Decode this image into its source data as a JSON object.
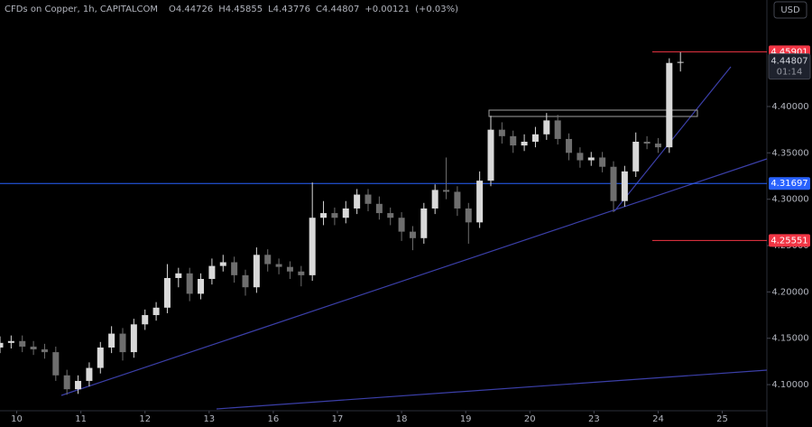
{
  "chart_data": {
    "type": "candlestick",
    "title": "CFDs on Copper, 1h, CAPITALCOM",
    "header_values": [
      {
        "value": 4.44726,
        "label": "O4.44726"
      },
      {
        "value": 4.45855,
        "label": "H4.45855"
      },
      {
        "value": 4.43776,
        "label": "L4.43776"
      },
      {
        "value": 4.44807,
        "label": "C4.44807"
      },
      {
        "value": 0.00121,
        "label": "+0.00121"
      },
      {
        "value": 0.03,
        "label": "(+0.03%)"
      }
    ],
    "currency": "USD",
    "up_color": "#d9d9d9",
    "down_color": "#6e6e6e",
    "x": [
      0,
      4,
      8,
      12,
      16,
      20,
      24,
      28,
      32,
      36,
      40,
      44,
      48,
      52,
      56,
      60,
      64,
      68,
      72,
      76,
      80,
      84,
      88,
      92,
      96,
      100,
      104,
      108,
      112,
      116,
      120,
      124,
      128,
      132,
      136,
      140,
      144,
      148,
      152,
      156,
      160,
      164,
      168,
      172,
      176,
      180,
      184,
      188,
      192,
      196,
      200,
      204,
      208,
      212,
      216,
      220,
      224,
      228,
      232,
      236,
      240,
      244
    ],
    "open": [
      4.14,
      4.145,
      4.147,
      4.141,
      4.138,
      4.135,
      4.11,
      4.095,
      4.104,
      4.118,
      4.14,
      4.155,
      4.135,
      4.165,
      4.175,
      4.183,
      4.215,
      4.22,
      4.198,
      4.214,
      4.228,
      4.232,
      4.218,
      4.205,
      4.24,
      4.23,
      4.227,
      4.222,
      4.218,
      4.28,
      4.285,
      4.28,
      4.29,
      4.305,
      4.295,
      4.285,
      4.28,
      4.265,
      4.258,
      4.29,
      4.31,
      4.308,
      4.29,
      4.275,
      4.32,
      4.375,
      4.368,
      4.358,
      4.362,
      4.37,
      4.385,
      4.365,
      4.35,
      4.342,
      4.345,
      4.335,
      4.298,
      4.33,
      4.362,
      4.36,
      4.356,
      4.44726
    ],
    "high": [
      4.152,
      4.153,
      4.153,
      4.147,
      4.144,
      4.141,
      4.116,
      4.11,
      4.124,
      4.146,
      4.163,
      4.161,
      4.171,
      4.181,
      4.189,
      4.23,
      4.226,
      4.226,
      4.22,
      4.236,
      4.24,
      4.238,
      4.224,
      4.248,
      4.246,
      4.236,
      4.233,
      4.228,
      4.318,
      4.298,
      4.291,
      4.298,
      4.311,
      4.311,
      4.303,
      4.291,
      4.286,
      4.271,
      4.296,
      4.316,
      4.345,
      4.314,
      4.296,
      4.33,
      4.39,
      4.383,
      4.374,
      4.37,
      4.378,
      4.393,
      4.391,
      4.371,
      4.356,
      4.351,
      4.351,
      4.341,
      4.336,
      4.372,
      4.368,
      4.366,
      4.452,
      4.45855
    ],
    "low": [
      4.134,
      4.139,
      4.135,
      4.132,
      4.128,
      4.104,
      4.089,
      4.09,
      4.098,
      4.112,
      4.134,
      4.126,
      4.129,
      4.159,
      4.169,
      4.177,
      4.205,
      4.19,
      4.192,
      4.208,
      4.222,
      4.21,
      4.196,
      4.199,
      4.222,
      4.219,
      4.214,
      4.206,
      4.212,
      4.272,
      4.272,
      4.274,
      4.284,
      4.287,
      4.278,
      4.272,
      4.255,
      4.245,
      4.252,
      4.284,
      4.3,
      4.282,
      4.252,
      4.269,
      4.314,
      4.36,
      4.35,
      4.352,
      4.356,
      4.364,
      4.359,
      4.342,
      4.334,
      4.336,
      4.329,
      4.286,
      4.292,
      4.324,
      4.354,
      4.35,
      4.35,
      4.43776
    ],
    "close": [
      4.145,
      4.147,
      4.141,
      4.138,
      4.135,
      4.11,
      4.095,
      4.104,
      4.118,
      4.14,
      4.155,
      4.135,
      4.165,
      4.175,
      4.183,
      4.215,
      4.22,
      4.198,
      4.214,
      4.228,
      4.232,
      4.218,
      4.205,
      4.24,
      4.23,
      4.227,
      4.222,
      4.218,
      4.28,
      4.285,
      4.28,
      4.29,
      4.305,
      4.295,
      4.285,
      4.28,
      4.265,
      4.258,
      4.29,
      4.31,
      4.308,
      4.29,
      4.275,
      4.32,
      4.375,
      4.368,
      4.358,
      4.362,
      4.37,
      4.385,
      4.365,
      4.35,
      4.342,
      4.345,
      4.335,
      4.298,
      4.33,
      4.362,
      4.36,
      4.356,
      4.447,
      4.44807
    ],
    "xlim": [
      0,
      275
    ],
    "ylim": [
      4.0718,
      4.5149
    ],
    "xticks": [
      {
        "value": 6,
        "label": "10"
      },
      {
        "value": 29,
        "label": "11"
      },
      {
        "value": 52,
        "label": "12"
      },
      {
        "value": 75,
        "label": "13"
      },
      {
        "value": 98,
        "label": "16"
      },
      {
        "value": 121,
        "label": "17"
      },
      {
        "value": 144,
        "label": "18"
      },
      {
        "value": 167,
        "label": "19"
      },
      {
        "value": 190,
        "label": "20"
      },
      {
        "value": 213,
        "label": "23"
      },
      {
        "value": 236,
        "label": "24"
      },
      {
        "value": 259,
        "label": "25"
      }
    ],
    "yticks": [
      {
        "value": 4.1,
        "label": "4.10000"
      },
      {
        "value": 4.15,
        "label": "4.15000"
      },
      {
        "value": 4.2,
        "label": "4.20000"
      },
      {
        "value": 4.25,
        "label": "4.25000"
      },
      {
        "value": 4.3,
        "label": "4.30000"
      },
      {
        "value": 4.35,
        "label": "4.35000"
      },
      {
        "value": 4.4,
        "label": "4.40000"
      }
    ],
    "levels": [
      {
        "value": 4.45901,
        "color": "#f23645",
        "span": "right"
      },
      {
        "value": 4.31697,
        "color": "#2962ff",
        "span": "full"
      },
      {
        "value": 4.25551,
        "color": "#f23645",
        "span": "right"
      }
    ],
    "last_price": {
      "value": 4.44807,
      "countdown": "01:14"
    }
  }
}
